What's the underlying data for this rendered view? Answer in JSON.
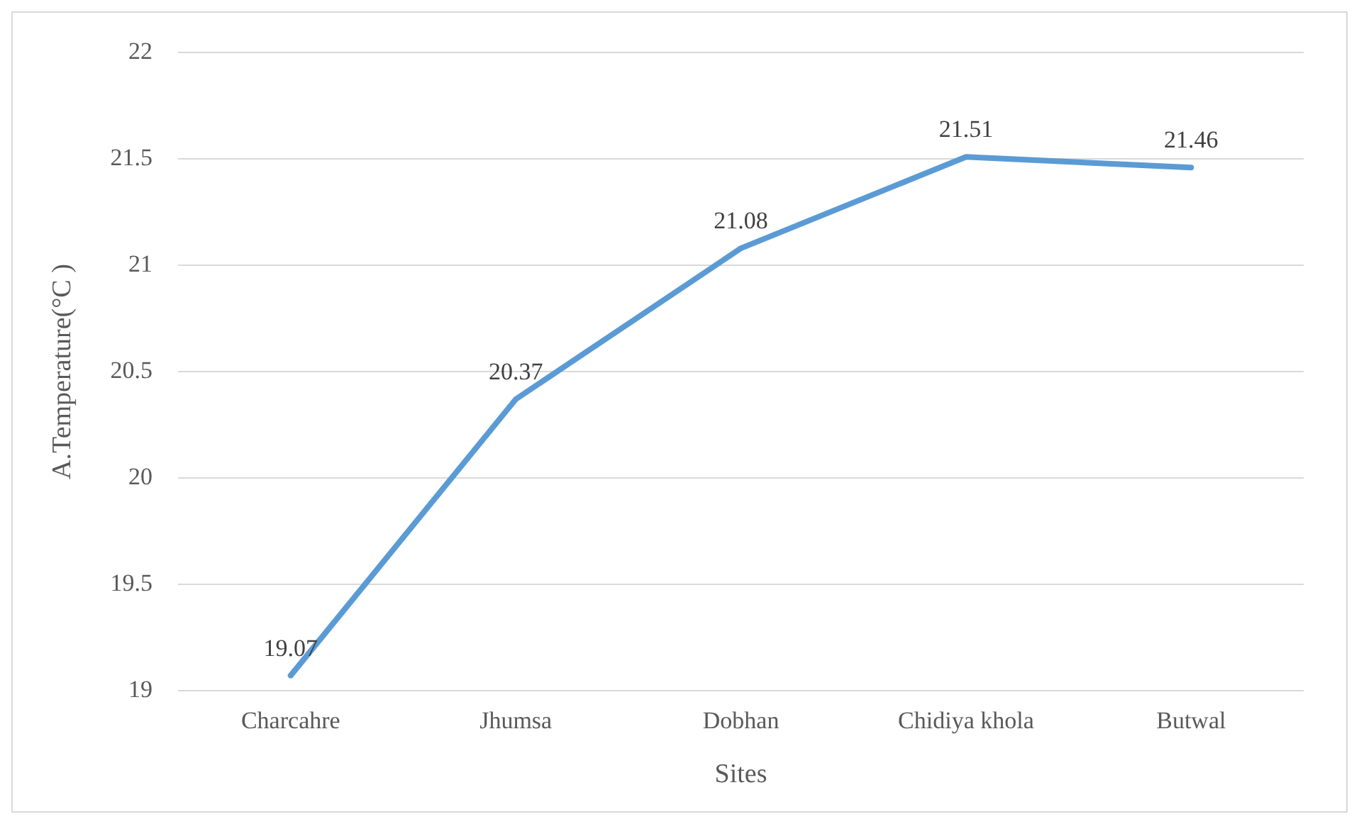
{
  "chart_data": {
    "type": "line",
    "xlabel": "Sites",
    "ylabel": "A.Temperature(°C )",
    "categories": [
      "Charcahre",
      "Jhumsa",
      "Dobhan",
      "Chidiya khola",
      "Butwal"
    ],
    "series": [
      {
        "color": "#5b9bd5",
        "values": [
          19.07,
          20.37,
          21.08,
          21.51,
          21.46
        ]
      }
    ],
    "ylim": [
      19,
      22
    ],
    "yticks": [
      19,
      19.5,
      20,
      20.5,
      21,
      21.5,
      22
    ],
    "grid": "y",
    "legend": false,
    "marker": "none",
    "data_labels": true
  }
}
